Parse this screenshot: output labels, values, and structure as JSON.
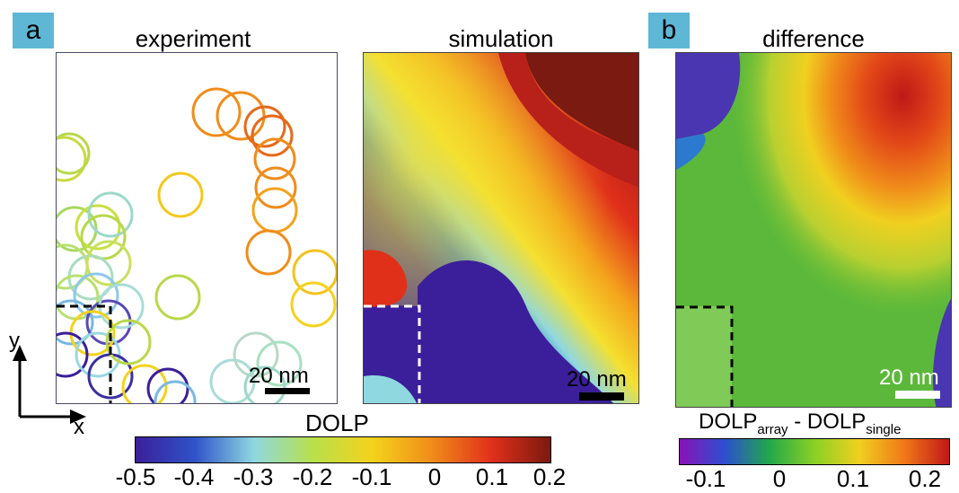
{
  "panel_labels": {
    "a": "a",
    "b": "b"
  },
  "titles": {
    "experiment": "experiment",
    "simulation": "simulation",
    "difference": "difference"
  },
  "scalebars": {
    "experiment": "20 nm",
    "simulation": "20 nm",
    "difference": "20 nm"
  },
  "axes": {
    "y": "y",
    "x": "x"
  },
  "colorbar_dolp": {
    "label": "DOLP",
    "ticks": [
      "-0.5",
      "-0.4",
      "-0.3",
      "-0.2",
      "-0.1",
      "0",
      "0.1",
      "0.2"
    ],
    "colors": [
      "#3b1f9a",
      "#2f53c8",
      "#8fd8e0",
      "#b8e04a",
      "#f4d21c",
      "#f08c1a",
      "#e0301a",
      "#7a1a10"
    ]
  },
  "colorbar_diff": {
    "label_main1": "DOLP",
    "label_sub1": "array",
    "label_sep": " - DOLP",
    "label_sub2": "single",
    "ticks": [
      "-0.1",
      "0",
      "0.1",
      "0.2"
    ],
    "colors": [
      "#8a12b8",
      "#2c4fd0",
      "#22a84a",
      "#8ad024",
      "#f0d020",
      "#f07818",
      "#c01818"
    ]
  }
}
